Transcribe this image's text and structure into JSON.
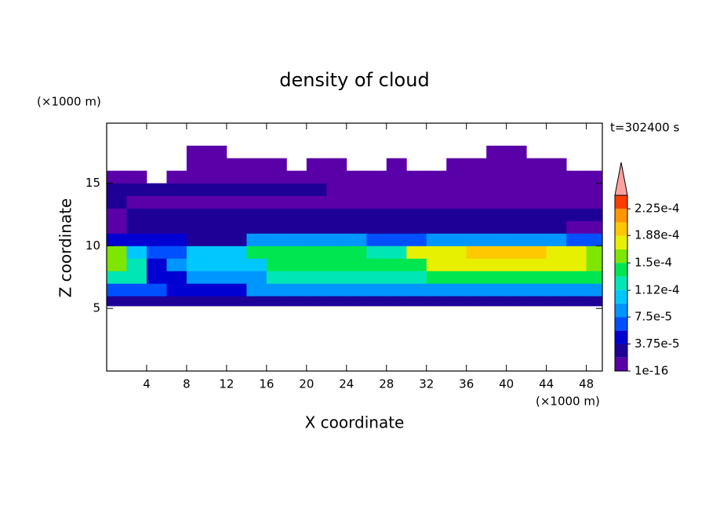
{
  "chart_data": {
    "type": "contour",
    "title": "density of cloud",
    "x_label": "X coordinate",
    "y_label": "Z coordinate",
    "x_unit": "(×1000 m)",
    "y_unit": "(×1000 m)",
    "time_label": "t=302400 s",
    "xlim": [
      0,
      49.6
    ],
    "ylim": [
      0,
      19.8
    ],
    "xticks": [
      4,
      8,
      12,
      16,
      20,
      24,
      28,
      32,
      36,
      40,
      44,
      48
    ],
    "yticks": [
      5,
      10,
      15
    ],
    "x_bins": [
      0,
      2,
      4,
      6,
      8,
      10,
      12,
      14,
      16,
      18,
      20,
      22,
      24,
      26,
      28,
      30,
      32,
      34,
      36,
      38,
      40,
      42,
      44,
      46,
      48,
      49.6
    ],
    "y_bins": [
      5.2,
      6,
      7,
      8,
      9,
      10,
      11,
      12,
      13,
      14,
      15,
      16,
      17,
      18
    ],
    "levels": [
      1e-16,
      1.875e-05,
      3.75e-05,
      5.625e-05,
      7.5e-05,
      9.375e-05,
      0.0001125,
      0.00013125,
      0.00015,
      0.00016875,
      0.0001875,
      0.00020625,
      0.000225,
      0.00024375
    ],
    "colors": [
      "#5a00a8",
      "#1e0096",
      "#0000d2",
      "#0050ff",
      "#0096ff",
      "#00c8ff",
      "#00e6b4",
      "#00e650",
      "#7ee600",
      "#e6f000",
      "#ffc800",
      "#ff9600",
      "#ff3c00",
      "#ffa0a0"
    ],
    "colorbar_ticks": [
      1e-16,
      {
        "value": 3.75e-05,
        "label": "3.75e-5"
      },
      {
        "value": 7.5e-05,
        "label": "7.5e-5"
      },
      {
        "value": 0.000112,
        "label": "1.12e-4"
      },
      {
        "value": 0.00015,
        "label": "1.5e-4"
      },
      {
        "value": 0.000188,
        "label": "1.88e-4"
      },
      {
        "value": 0.000225,
        "label": "2.25e-4"
      }
    ],
    "values": [
      [
        2.5e-05,
        2.5e-05,
        2.5e-05,
        2.5e-05,
        2.5e-05,
        2.5e-05,
        2.5e-05,
        2.5e-05,
        2.5e-05,
        2.5e-05,
        2.5e-05,
        2.5e-05,
        2.5e-05,
        2.5e-05,
        2.5e-05,
        2.5e-05,
        2.5e-05,
        2.5e-05,
        2.5e-05,
        2.5e-05,
        2.5e-05,
        2.5e-05,
        2.5e-05,
        2.5e-05,
        2.5e-05
      ],
      [
        6e-05,
        6e-05,
        6e-05,
        5e-05,
        5e-05,
        5e-05,
        5e-05,
        8e-05,
        8e-05,
        8e-05,
        8e-05,
        8e-05,
        8e-05,
        8e-05,
        8e-05,
        8e-05,
        8e-05,
        8e-05,
        8e-05,
        8e-05,
        8e-05,
        8e-05,
        8e-05,
        8e-05,
        8e-05
      ],
      [
        0.00012,
        0.00012,
        5e-05,
        5e-05,
        8e-05,
        8e-05,
        8e-05,
        8e-05,
        0.00012,
        0.00012,
        0.00012,
        0.00012,
        0.00012,
        0.00013,
        0.00013,
        0.00013,
        0.000145,
        0.000145,
        0.000145,
        0.000145,
        0.000145,
        0.000145,
        0.000145,
        0.000145,
        0.000145
      ],
      [
        0.00015,
        0.00012,
        4e-05,
        8e-05,
        0.00011,
        0.00011,
        0.00011,
        0.00011,
        0.000135,
        0.000135,
        0.000135,
        0.000135,
        0.000135,
        0.00014,
        0.00014,
        0.00014,
        0.000175,
        0.000175,
        0.000175,
        0.000175,
        0.000175,
        0.000175,
        0.000175,
        0.000175,
        0.00016
      ],
      [
        0.00016,
        0.0001,
        6e-05,
        6e-05,
        0.0001,
        0.0001,
        0.0001,
        0.00014,
        0.00014,
        0.00014,
        0.000145,
        0.000145,
        0.000145,
        0.00012,
        0.00012,
        0.00018,
        0.00018,
        0.00018,
        0.000195,
        0.000195,
        0.000195,
        0.000195,
        0.00018,
        0.00018,
        0.00016
      ],
      [
        5e-05,
        4e-05,
        4e-05,
        4e-05,
        3e-05,
        3e-05,
        3e-05,
        9e-05,
        9e-05,
        9e-05,
        9e-05,
        9e-05,
        9e-05,
        6e-05,
        6e-05,
        6e-05,
        9e-05,
        9e-05,
        9e-05,
        9e-05,
        9e-05,
        9e-05,
        9e-05,
        6e-05,
        6e-05
      ],
      [
        5e-06,
        2.5e-05,
        2.5e-05,
        2.5e-05,
        2.5e-05,
        2.5e-05,
        2.5e-05,
        2.5e-05,
        2.5e-05,
        2.5e-05,
        2.5e-05,
        2.5e-05,
        2.5e-05,
        2e-05,
        2e-05,
        2e-05,
        2e-05,
        2e-05,
        2e-05,
        2e-05,
        2e-05,
        2e-05,
        2e-05,
        1e-05,
        5e-06
      ],
      [
        5e-06,
        2e-05,
        2e-05,
        2e-05,
        2e-05,
        2e-05,
        2e-05,
        2e-05,
        3e-05,
        3e-05,
        3e-05,
        3e-05,
        3e-05,
        3e-05,
        3e-05,
        3e-05,
        3e-05,
        3e-05,
        2e-05,
        2e-05,
        2e-05,
        2e-05,
        2e-05,
        2e-05,
        2e-05
      ],
      [
        2e-05,
        1.5e-05,
        1.5e-05,
        1.5e-05,
        1.5e-05,
        1.5e-05,
        1.5e-05,
        1.5e-05,
        1.5e-05,
        1.5e-05,
        1.5e-05,
        1.5e-05,
        1.5e-05,
        1.5e-05,
        1.5e-05,
        1.5e-05,
        1.5e-05,
        1.5e-05,
        1.5e-05,
        1.5e-05,
        1.5e-05,
        1.5e-05,
        1.5e-05,
        1.5e-05,
        1.5e-05
      ],
      [
        2e-05,
        2e-05,
        2e-05,
        2e-05,
        2e-05,
        2e-05,
        2e-05,
        2e-05,
        2e-05,
        2e-05,
        2e-05,
        1e-05,
        1e-05,
        1e-05,
        1e-05,
        1e-05,
        1e-05,
        1e-05,
        1e-05,
        1e-05,
        5e-06,
        5e-06,
        5e-06,
        5e-06,
        5e-06
      ],
      [
        5e-06,
        5e-06,
        null,
        5e-06,
        5e-06,
        5e-06,
        5e-06,
        5e-06,
        5e-06,
        5e-06,
        5e-06,
        5e-06,
        5e-06,
        5e-06,
        5e-06,
        5e-06,
        5e-06,
        5e-06,
        5e-06,
        5e-06,
        5e-06,
        5e-06,
        5e-06,
        5e-06,
        5e-06
      ],
      [
        null,
        null,
        null,
        null,
        5e-06,
        5e-06,
        5e-06,
        5e-06,
        5e-06,
        null,
        5e-06,
        5e-06,
        null,
        null,
        5e-06,
        null,
        null,
        5e-06,
        5e-06,
        5e-06,
        5e-06,
        5e-06,
        5e-06,
        null,
        null
      ],
      [
        null,
        null,
        null,
        null,
        5e-06,
        5e-06,
        null,
        null,
        null,
        null,
        null,
        null,
        null,
        null,
        null,
        null,
        null,
        null,
        null,
        5e-06,
        5e-06,
        null,
        null,
        null,
        null
      ]
    ]
  }
}
